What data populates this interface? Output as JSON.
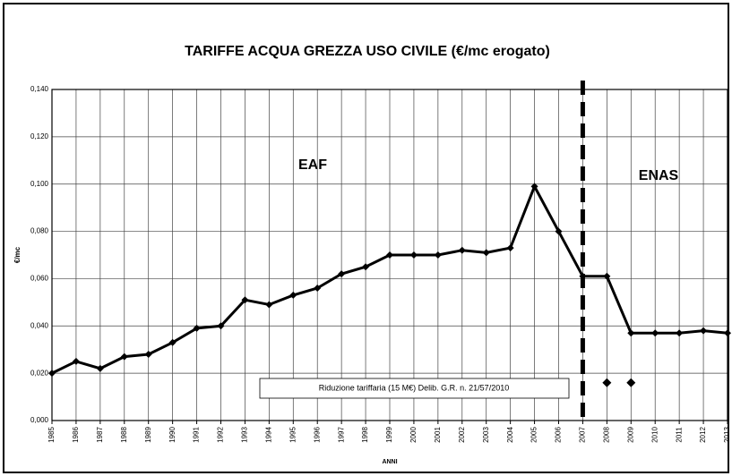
{
  "chart_data": {
    "type": "line",
    "title": "TARIFFE ACQUA GREZZA USO CIVILE (€/mc erogato)",
    "y_label": "€/mc",
    "x_label": "ANNI",
    "annotations": [
      "EAF",
      "ENAS",
      "Riduzione tariffaria (15 M€) Delib. G.R. n. 21/57/2010"
    ],
    "vline": "2007",
    "categories": [
      "1985",
      "1986",
      "1987",
      "1988",
      "1989",
      "1990",
      "1991",
      "1992",
      "1993",
      "1994",
      "1995",
      "1996",
      "1997",
      "1998",
      "1999",
      "2000",
      "2001",
      "2002",
      "2003",
      "2004",
      "2005",
      "2006",
      "2007",
      "2008",
      "2009",
      "2010",
      "2011",
      "2012",
      "2013"
    ],
    "series": [
      {
        "color": "#000000",
        "values": [
          0.02,
          0.025,
          0.022,
          0.027,
          0.028,
          0.033,
          0.039,
          0.04,
          0.051,
          0.049,
          0.053,
          0.056,
          0.062,
          0.065,
          0.07,
          0.07,
          0.07,
          0.072,
          0.071,
          0.073,
          0.099,
          0.08,
          0.061,
          0.061,
          0.037,
          0.037,
          0.037,
          0.038,
          0.037
        ]
      },
      {
        "color": "#000000",
        "values": [
          null,
          null,
          null,
          null,
          null,
          null,
          null,
          null,
          null,
          null,
          null,
          null,
          null,
          null,
          null,
          null,
          null,
          null,
          null,
          null,
          null,
          null,
          null,
          0.016,
          0.016,
          null,
          null,
          null,
          null
        ]
      }
    ],
    "ylim": [
      0,
      0.14
    ],
    "yticks": [
      {
        "value": 0,
        "label": "0,000"
      },
      {
        "value": 0.02,
        "label": "0,020"
      },
      {
        "value": 0.04,
        "label": "0,040"
      },
      {
        "value": 0.06,
        "label": "0,060"
      },
      {
        "value": 0.08,
        "label": "0,080"
      },
      {
        "value": 0.1,
        "label": "0,100"
      },
      {
        "value": 0.12,
        "label": "0,120"
      },
      {
        "value": 0.14,
        "label": "0,140"
      }
    ],
    "grid": true
  }
}
